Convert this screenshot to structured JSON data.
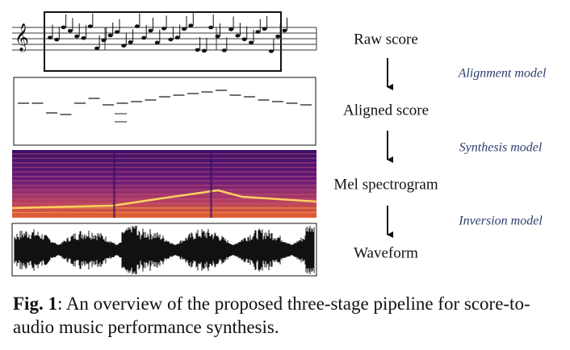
{
  "figure": {
    "stages": [
      "Raw score",
      "Aligned score",
      "Mel spectrogram",
      "Waveform"
    ],
    "models": [
      "Alignment model",
      "Synthesis model",
      "Inversion model"
    ],
    "caption": {
      "label": "Fig. 1",
      "text": ": An overview of the proposed three-stage pipeline for score-to-audio music performance synthesis."
    }
  }
}
